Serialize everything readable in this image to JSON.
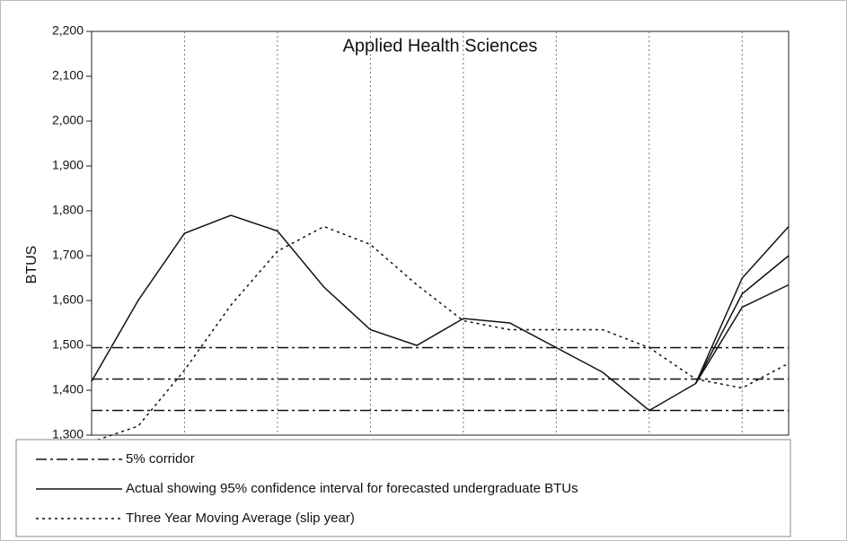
{
  "chart_data": {
    "type": "line",
    "title": "Applied Health Sciences",
    "y_label": "BTUS",
    "x": [
      0,
      1,
      2,
      3,
      4,
      5,
      6,
      7,
      8,
      9,
      10,
      11,
      12,
      13,
      14,
      15
    ],
    "xlim": [
      0,
      15
    ],
    "xticks": [
      2,
      4,
      6,
      8,
      10,
      12,
      14
    ],
    "grid": true,
    "ylim": [
      1300,
      2200
    ],
    "yticks": [
      {
        "value": 1300,
        "label": "1,300"
      },
      {
        "value": 1400,
        "label": "1,400"
      },
      {
        "value": 1500,
        "label": "1,500"
      },
      {
        "value": 1600,
        "label": "1,600"
      },
      {
        "value": 1700,
        "label": "1,700"
      },
      {
        "value": 1800,
        "label": "1,800"
      },
      {
        "value": 1900,
        "label": "1,900"
      },
      {
        "value": 2000,
        "label": "2,000"
      },
      {
        "value": 2100,
        "label": "2,100"
      },
      {
        "value": 2200,
        "label": "2,200"
      }
    ],
    "series": [
      {
        "name": "5% corridor",
        "color": "#111111",
        "style": "dash-dot",
        "values": [
          1495,
          1495,
          1495,
          1495,
          1495,
          1495,
          1495,
          1495,
          1495,
          1495,
          1495,
          1495,
          1495,
          1495,
          1495,
          1495
        ]
      },
      {
        "color": "#111111",
        "style": "dash-dot",
        "values": [
          1425,
          1425,
          1425,
          1425,
          1425,
          1425,
          1425,
          1425,
          1425,
          1425,
          1425,
          1425,
          1425,
          1425,
          1425,
          1425
        ]
      },
      {
        "color": "#111111",
        "style": "dash-dot",
        "values": [
          1355,
          1355,
          1355,
          1355,
          1355,
          1355,
          1355,
          1355,
          1355,
          1355,
          1355,
          1355,
          1355,
          1355,
          1355,
          1355
        ]
      },
      {
        "name": "Actual showing 95% confidence interval for forecasted undergraduate BTUs",
        "color": "#111111",
        "style": "solid",
        "values": [
          1420,
          1600,
          1750,
          1790,
          1755,
          1630,
          1535,
          1500,
          1560,
          1550,
          1495,
          1440,
          1355,
          1415,
          1615,
          1700
        ]
      },
      {
        "color": "#111111",
        "style": "solid",
        "values": [
          null,
          null,
          null,
          null,
          null,
          null,
          null,
          null,
          null,
          null,
          null,
          null,
          null,
          1415,
          1650,
          1765
        ]
      },
      {
        "color": "#111111",
        "style": "solid",
        "values": [
          null,
          null,
          null,
          null,
          null,
          null,
          null,
          null,
          null,
          null,
          null,
          null,
          null,
          1415,
          1585,
          1635
        ]
      },
      {
        "name": "Three Year Moving Average (slip year)",
        "color": "#111111",
        "style": "dotted",
        "values": [
          1285,
          1320,
          1445,
          1590,
          1710,
          1765,
          1725,
          1635,
          1555,
          1535,
          1535,
          1535,
          1495,
          1425,
          1405,
          1460
        ]
      }
    ]
  }
}
